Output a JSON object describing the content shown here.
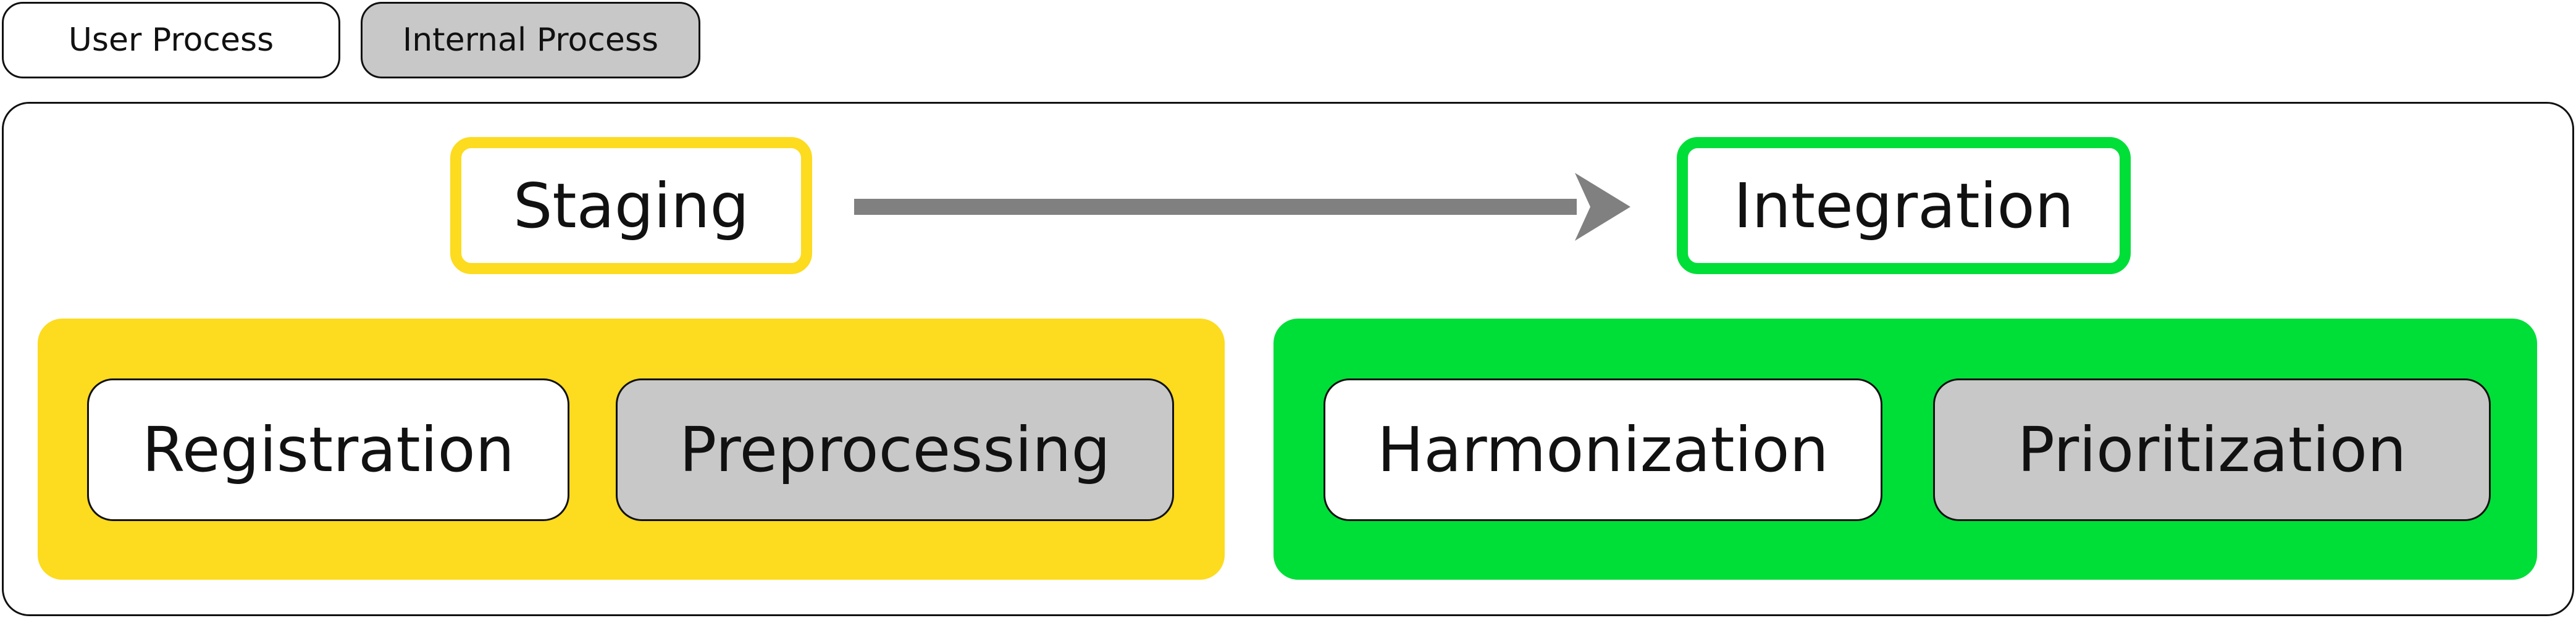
{
  "legend": {
    "user_process": "User Process",
    "internal_process": "Internal Process"
  },
  "stages": {
    "staging": "Staging",
    "integration": "Integration"
  },
  "processes": {
    "registration": "Registration",
    "preprocessing": "Preprocessing",
    "harmonization": "Harmonization",
    "prioritization": "Prioritization"
  },
  "colors": {
    "staging": "#FDDB1E",
    "integration": "#00DE38",
    "user_process_fill": "#FFFFFF",
    "internal_process_fill": "#C8C8C8",
    "arrow": "#808080",
    "outline": "#111111"
  },
  "icons": {
    "flow_arrow": "right-arrow-icon"
  }
}
